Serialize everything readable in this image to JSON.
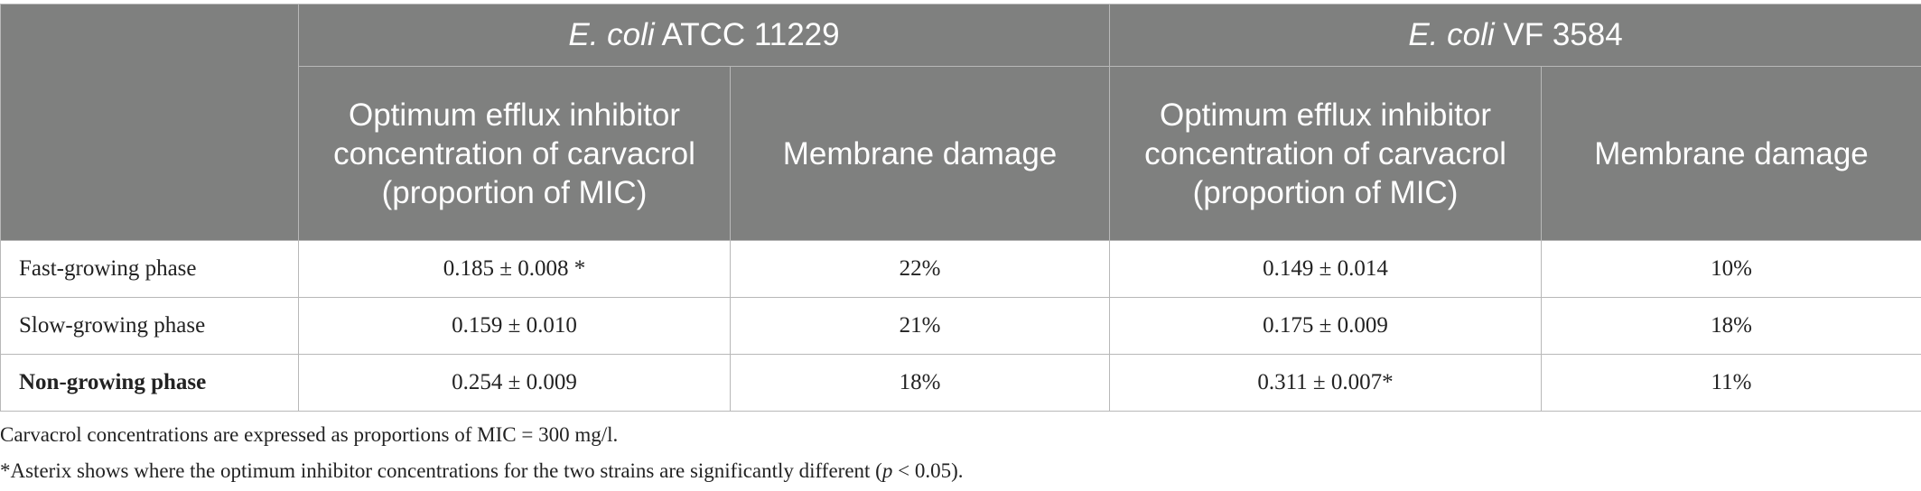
{
  "table": {
    "strains": [
      {
        "italic": "E. coli",
        "rest": " ATCC 11229"
      },
      {
        "italic": "E. coli",
        "rest": " VF 3584"
      }
    ],
    "subheaders": [
      "Optimum efflux inhibitor concentration of carvacrol (proportion of MIC)",
      "Membrane damage",
      "Optimum efflux inhibitor concentration of carvacrol (proportion of MIC)",
      "Membrane damage"
    ],
    "rows": [
      {
        "label": "Fast-growing phase",
        "cells": [
          "0.185 ± 0.008 *",
          "22%",
          "0.149 ± 0.014",
          "10%"
        ]
      },
      {
        "label": "Slow-growing phase",
        "cells": [
          "0.159 ± 0.010",
          "21%",
          "0.175 ± 0.009",
          "18%"
        ]
      },
      {
        "label": "Non-growing phase",
        "cells": [
          "0.254 ± 0.009",
          "18%",
          "0.311 ± 0.007*",
          "11%"
        ]
      }
    ]
  },
  "notes": {
    "line1": "Carvacrol concentrations are expressed as proportions of MIC = 300 mg/l.",
    "line2_before": "*Asterix shows where the optimum inhibitor concentrations for the two strains are significantly different (",
    "line2_italic": "p",
    "line2_after": " < 0.05)."
  }
}
